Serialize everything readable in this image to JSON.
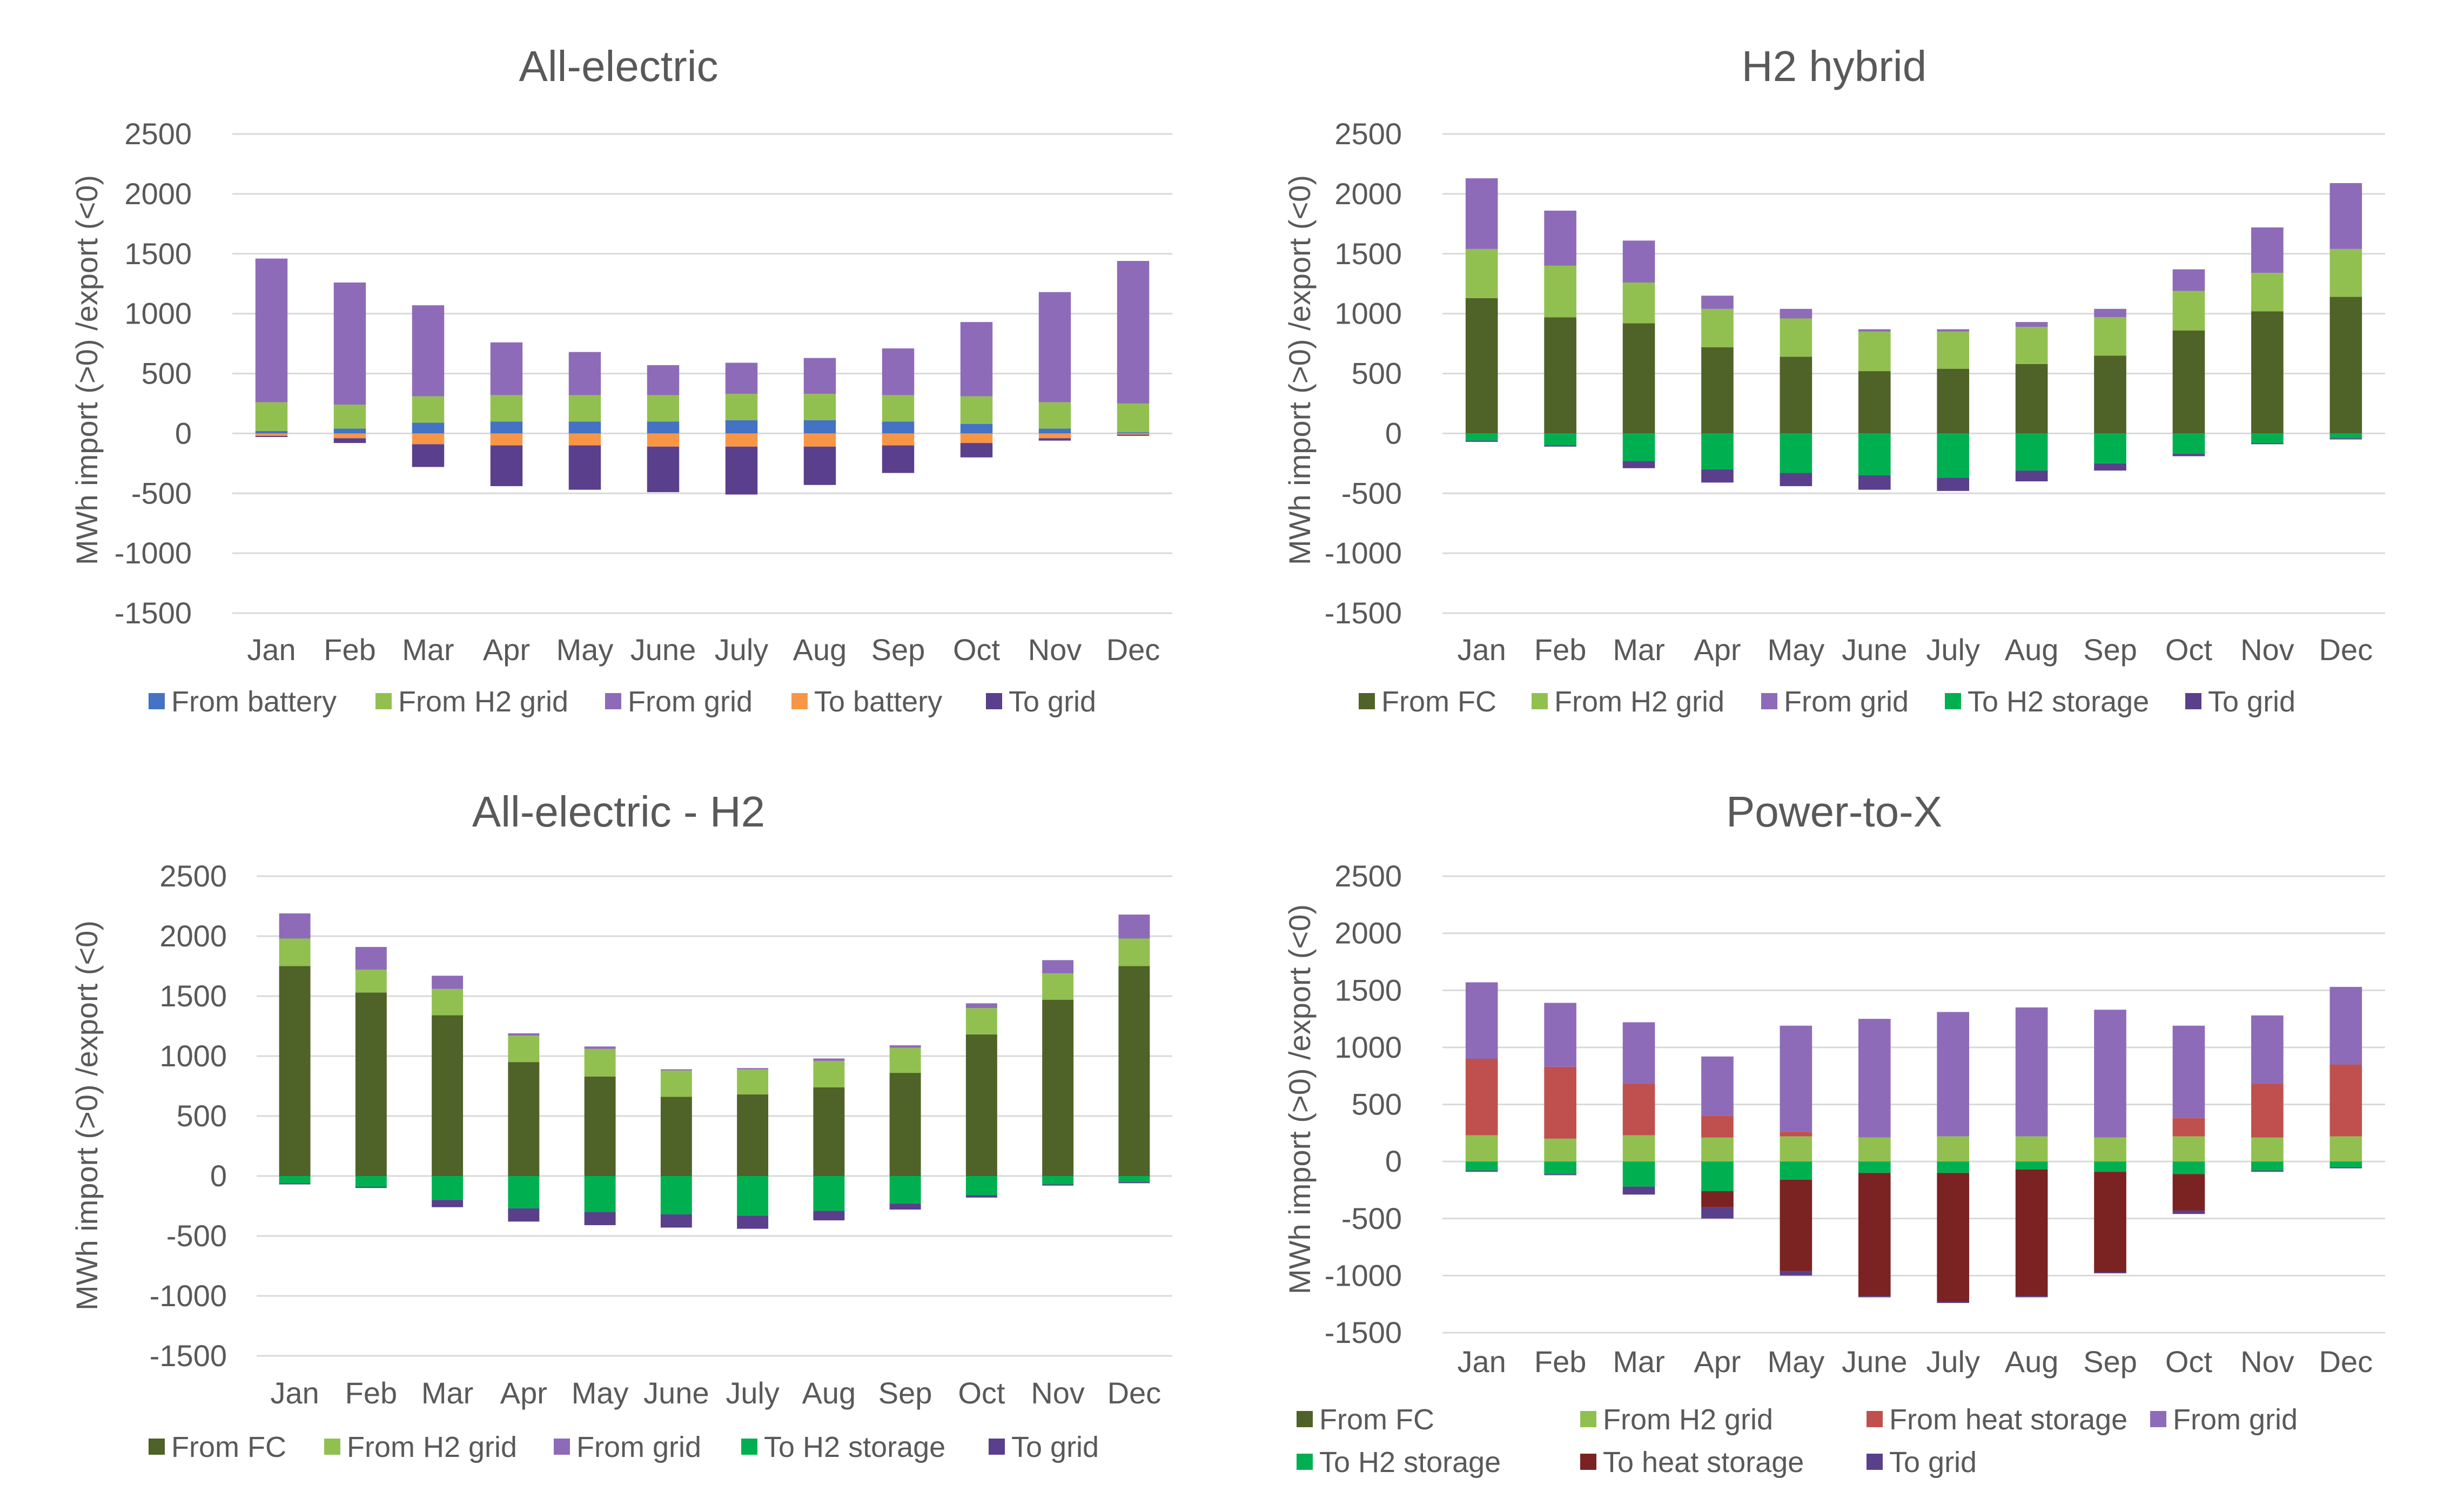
{
  "colors": {
    "From battery": "#4472c4",
    "From H2 grid": "#92c050",
    "From grid": "#8e6bb8",
    "To battery": "#f79646",
    "To grid": "#5a3f8c",
    "From FC": "#4f6228",
    "To H2 storage": "#00b050",
    "From heat storage": "#c0504d",
    "To heat storage": "#7b2222"
  },
  "chart_data": [
    {
      "type": "bar",
      "stacked": true,
      "title": "All-electric",
      "ylabel": "MWh import (>0) /export (<0)",
      "ylim": [
        -1500,
        2500
      ],
      "yticks": [
        2500,
        2000,
        1500,
        1000,
        500,
        0,
        -500,
        -1000,
        -1500
      ],
      "categories": [
        "Jan",
        "Feb",
        "Mar",
        "Apr",
        "May",
        "June",
        "July",
        "Aug",
        "Sep",
        "Oct",
        "Nov",
        "Dec"
      ],
      "legend": [
        "From battery",
        "From H2 grid",
        "From grid",
        "To battery",
        "To grid"
      ],
      "series": [
        {
          "name": "From battery",
          "values": [
            20,
            40,
            90,
            100,
            100,
            100,
            110,
            110,
            100,
            80,
            40,
            10
          ]
        },
        {
          "name": "From H2 grid",
          "values": [
            240,
            200,
            220,
            220,
            220,
            220,
            220,
            220,
            220,
            230,
            220,
            240
          ]
        },
        {
          "name": "From grid",
          "values": [
            1200,
            1020,
            760,
            440,
            360,
            250,
            260,
            300,
            390,
            620,
            920,
            1190
          ]
        },
        {
          "name": "To battery",
          "values": [
            -20,
            -40,
            -90,
            -100,
            -100,
            -110,
            -110,
            -110,
            -100,
            -80,
            -40,
            -10
          ]
        },
        {
          "name": "To grid",
          "values": [
            -10,
            -40,
            -190,
            -340,
            -370,
            -380,
            -400,
            -320,
            -230,
            -120,
            -20,
            -10
          ]
        }
      ]
    },
    {
      "type": "bar",
      "stacked": true,
      "title": "H2 hybrid",
      "ylabel": "MWh import (>0) /export (<0)",
      "ylim": [
        -1500,
        2500
      ],
      "yticks": [
        2500,
        2000,
        1500,
        1000,
        500,
        0,
        -500,
        -1000,
        -1500
      ],
      "categories": [
        "Jan",
        "Feb",
        "Mar",
        "Apr",
        "May",
        "June",
        "July",
        "Aug",
        "Sep",
        "Oct",
        "Nov",
        "Dec"
      ],
      "legend": [
        "From FC",
        "From H2 grid",
        "From grid",
        "To H2 storage",
        "To grid"
      ],
      "series": [
        {
          "name": "From FC",
          "values": [
            1130,
            970,
            920,
            720,
            640,
            520,
            540,
            580,
            650,
            860,
            1020,
            1140
          ]
        },
        {
          "name": "From H2 grid",
          "values": [
            410,
            430,
            340,
            320,
            320,
            330,
            310,
            310,
            320,
            330,
            320,
            400
          ]
        },
        {
          "name": "From grid",
          "values": [
            590,
            460,
            350,
            110,
            80,
            20,
            20,
            40,
            70,
            180,
            380,
            550
          ]
        },
        {
          "name": "To H2 storage",
          "values": [
            -60,
            -100,
            -230,
            -300,
            -330,
            -350,
            -370,
            -310,
            -250,
            -170,
            -80,
            -40
          ]
        },
        {
          "name": "To grid",
          "values": [
            -10,
            -10,
            -60,
            -110,
            -110,
            -120,
            -110,
            -90,
            -60,
            -20,
            -10,
            -10
          ]
        }
      ]
    },
    {
      "type": "bar",
      "stacked": true,
      "title": "All-electric - H2",
      "ylabel": "MWh import (>0) /export (<0)",
      "ylim": [
        -1500,
        2500
      ],
      "yticks": [
        2500,
        2000,
        1500,
        1000,
        500,
        0,
        -500,
        -1000,
        -1500
      ],
      "categories": [
        "Jan",
        "Feb",
        "Mar",
        "Apr",
        "May",
        "June",
        "July",
        "Aug",
        "Sep",
        "Oct",
        "Nov",
        "Dec"
      ],
      "legend": [
        "From FC",
        "From H2 grid",
        "From grid",
        "To H2 storage",
        "To grid"
      ],
      "series": [
        {
          "name": "From FC",
          "values": [
            1750,
            1530,
            1340,
            950,
            830,
            660,
            680,
            740,
            860,
            1180,
            1470,
            1750
          ]
        },
        {
          "name": "From H2 grid",
          "values": [
            230,
            190,
            220,
            220,
            230,
            220,
            210,
            220,
            210,
            220,
            220,
            230
          ]
        },
        {
          "name": "From grid",
          "values": [
            210,
            190,
            110,
            20,
            20,
            10,
            10,
            20,
            20,
            40,
            110,
            200
          ]
        },
        {
          "name": "To H2 storage",
          "values": [
            -60,
            -90,
            -200,
            -270,
            -300,
            -320,
            -330,
            -290,
            -230,
            -160,
            -70,
            -50
          ]
        },
        {
          "name": "To grid",
          "values": [
            -10,
            -10,
            -60,
            -110,
            -110,
            -110,
            -110,
            -80,
            -50,
            -20,
            -10,
            -10
          ]
        }
      ]
    },
    {
      "type": "bar",
      "stacked": true,
      "title": "Power-to-X",
      "ylabel": "MWh import (>0) /export (<0)",
      "ylim": [
        -1500,
        2500
      ],
      "yticks": [
        2500,
        2000,
        1500,
        1000,
        500,
        0,
        -500,
        -1000,
        -1500
      ],
      "categories": [
        "Jan",
        "Feb",
        "Mar",
        "Apr",
        "May",
        "June",
        "July",
        "Aug",
        "Sep",
        "Oct",
        "Nov",
        "Dec"
      ],
      "legend": [
        "From FC",
        "From H2 grid",
        "From heat storage",
        "From grid",
        "To H2 storage",
        "To heat storage",
        "To grid"
      ],
      "series": [
        {
          "name": "From FC",
          "values": [
            0,
            0,
            0,
            0,
            0,
            0,
            0,
            0,
            0,
            0,
            0,
            0
          ]
        },
        {
          "name": "From H2 grid",
          "values": [
            230,
            200,
            230,
            210,
            220,
            210,
            220,
            220,
            210,
            220,
            210,
            220
          ]
        },
        {
          "name": "From heat storage",
          "values": [
            670,
            630,
            450,
            190,
            40,
            0,
            0,
            0,
            0,
            160,
            470,
            630
          ]
        },
        {
          "name": "From grid",
          "values": [
            670,
            560,
            540,
            520,
            930,
            1040,
            1090,
            1130,
            1120,
            810,
            600,
            680
          ]
        },
        {
          "name": "To H2 storage",
          "values": [
            -80,
            -110,
            -220,
            -260,
            -160,
            -100,
            -100,
            -70,
            -90,
            -110,
            -80,
            -50
          ]
        },
        {
          "name": "To heat storage",
          "values": [
            0,
            0,
            0,
            -140,
            -800,
            -1080,
            -1130,
            -1110,
            -880,
            -320,
            0,
            0
          ]
        },
        {
          "name": "To grid",
          "values": [
            -10,
            -10,
            -70,
            -100,
            -40,
            -10,
            -10,
            -10,
            -10,
            -30,
            -10,
            -10
          ]
        }
      ]
    }
  ]
}
